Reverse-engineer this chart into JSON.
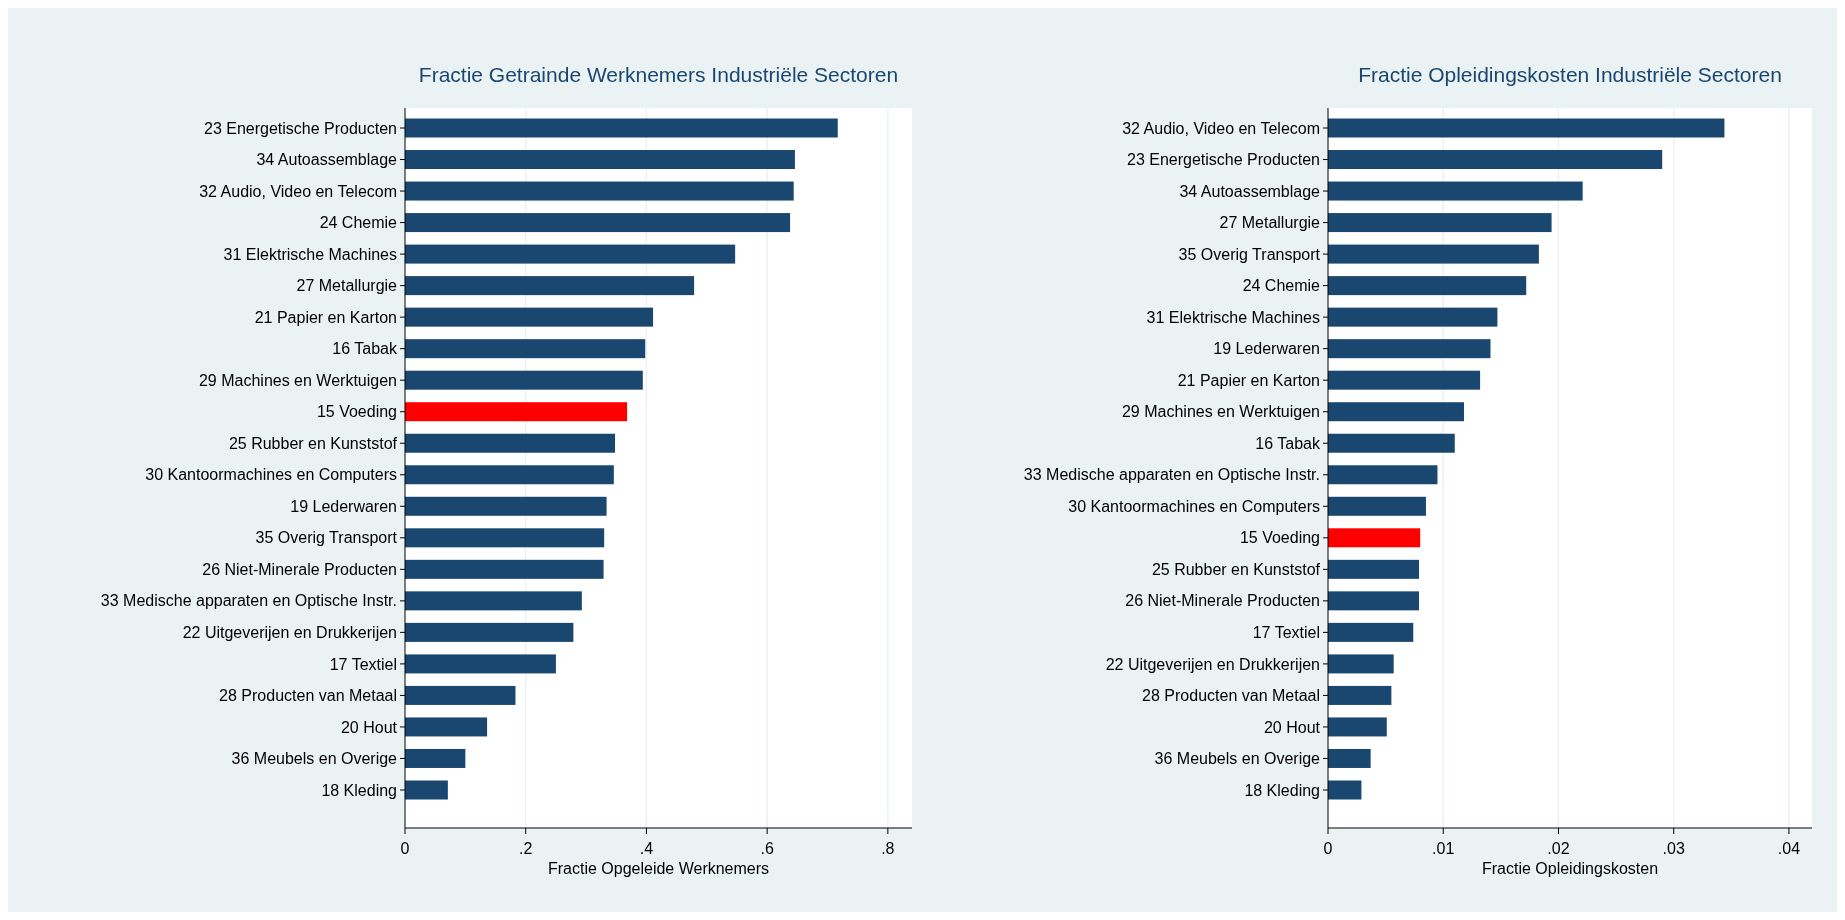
{
  "chart_data": [
    {
      "type": "bar",
      "orientation": "horizontal",
      "title": "Fractie Getrainde Werknemers Industriële Sectoren",
      "xlabel": "Fractie Opgeleide Werknemers",
      "categories": [
        "23 Energetische Producten",
        "34 Autoassemblage",
        "32 Audio, Video en Telecom",
        "24 Chemie",
        "31 Elektrische Machines",
        "27 Metallurgie",
        "21 Papier en Karton",
        "16 Tabak",
        "29 Machines en Werktuigen",
        "15 Voeding",
        "25 Rubber en Kunststof",
        "30 Kantoormachines en Computers",
        "19 Lederwaren",
        "35 Overig Transport",
        "26 Niet-Minerale Producten",
        "33 Medische apparaten en Optische Instr.",
        "22 Uitgeverijen en Drukkerijen",
        "17 Textiel",
        "28 Producten van Metaal",
        "20 Hout",
        "36 Meubels en Overige",
        "18 Kleding"
      ],
      "values": [
        0.717,
        0.646,
        0.644,
        0.638,
        0.547,
        0.479,
        0.411,
        0.398,
        0.394,
        0.368,
        0.348,
        0.346,
        0.334,
        0.33,
        0.329,
        0.293,
        0.279,
        0.25,
        0.183,
        0.136,
        0.1,
        0.071
      ],
      "colors": [
        "#1a476f",
        "#1a476f",
        "#1a476f",
        "#1a476f",
        "#1a476f",
        "#1a476f",
        "#1a476f",
        "#1a476f",
        "#1a476f",
        "#ff0000",
        "#1a476f",
        "#1a476f",
        "#1a476f",
        "#1a476f",
        "#1a476f",
        "#1a476f",
        "#1a476f",
        "#1a476f",
        "#1a476f",
        "#1a476f",
        "#1a476f",
        "#1a476f"
      ],
      "xlim": [
        0,
        0.84
      ],
      "xticks": [
        0,
        {
          "value": 0.2,
          "label": ".2"
        },
        {
          "value": 0.4,
          "label": ".4"
        },
        {
          "value": 0.6,
          "label": ".6"
        },
        {
          "value": 0.8,
          "label": ".8"
        }
      ],
      "grid": "x"
    },
    {
      "type": "bar",
      "orientation": "horizontal",
      "title": "Fractie Opleidingskosten Industriële Sectoren",
      "xlabel": "Fractie Opleidingskosten",
      "categories": [
        "32 Audio, Video en Telecom",
        "23 Energetische Producten",
        "34 Autoassemblage",
        "27 Metallurgie",
        "35 Overig Transport",
        "24 Chemie",
        "31 Elektrische Machines",
        "19 Lederwaren",
        "21 Papier en Karton",
        "29 Machines en Werktuigen",
        "16 Tabak",
        "33 Medische apparaten en Optische Instr.",
        "30 Kantoormachines en Computers",
        "15 Voeding",
        "25 Rubber en Kunststof",
        "26 Niet-Minerale Producten",
        "17 Textiel",
        "22 Uitgeverijen en Drukkerijen",
        "28 Producten van Metaal",
        "20 Hout",
        "36 Meubels en Overige",
        "18 Kleding"
      ],
      "values": [
        0.0344,
        0.029,
        0.0221,
        0.0194,
        0.0183,
        0.0172,
        0.0147,
        0.0141,
        0.0132,
        0.0118,
        0.011,
        0.0095,
        0.0085,
        0.008,
        0.0079,
        0.0079,
        0.0074,
        0.0057,
        0.0055,
        0.0051,
        0.0037,
        0.0029
      ],
      "colors": [
        "#1a476f",
        "#1a476f",
        "#1a476f",
        "#1a476f",
        "#1a476f",
        "#1a476f",
        "#1a476f",
        "#1a476f",
        "#1a476f",
        "#1a476f",
        "#1a476f",
        "#1a476f",
        "#1a476f",
        "#ff0000",
        "#1a476f",
        "#1a476f",
        "#1a476f",
        "#1a476f",
        "#1a476f",
        "#1a476f",
        "#1a476f",
        "#1a476f"
      ],
      "xlim": [
        0,
        0.042
      ],
      "xticks": [
        0,
        {
          "value": 0.01,
          "label": ".01"
        },
        {
          "value": 0.02,
          "label": ".02"
        },
        {
          "value": 0.03,
          "label": ".03"
        },
        {
          "value": 0.04,
          "label": ".04"
        }
      ],
      "grid": "x"
    }
  ]
}
